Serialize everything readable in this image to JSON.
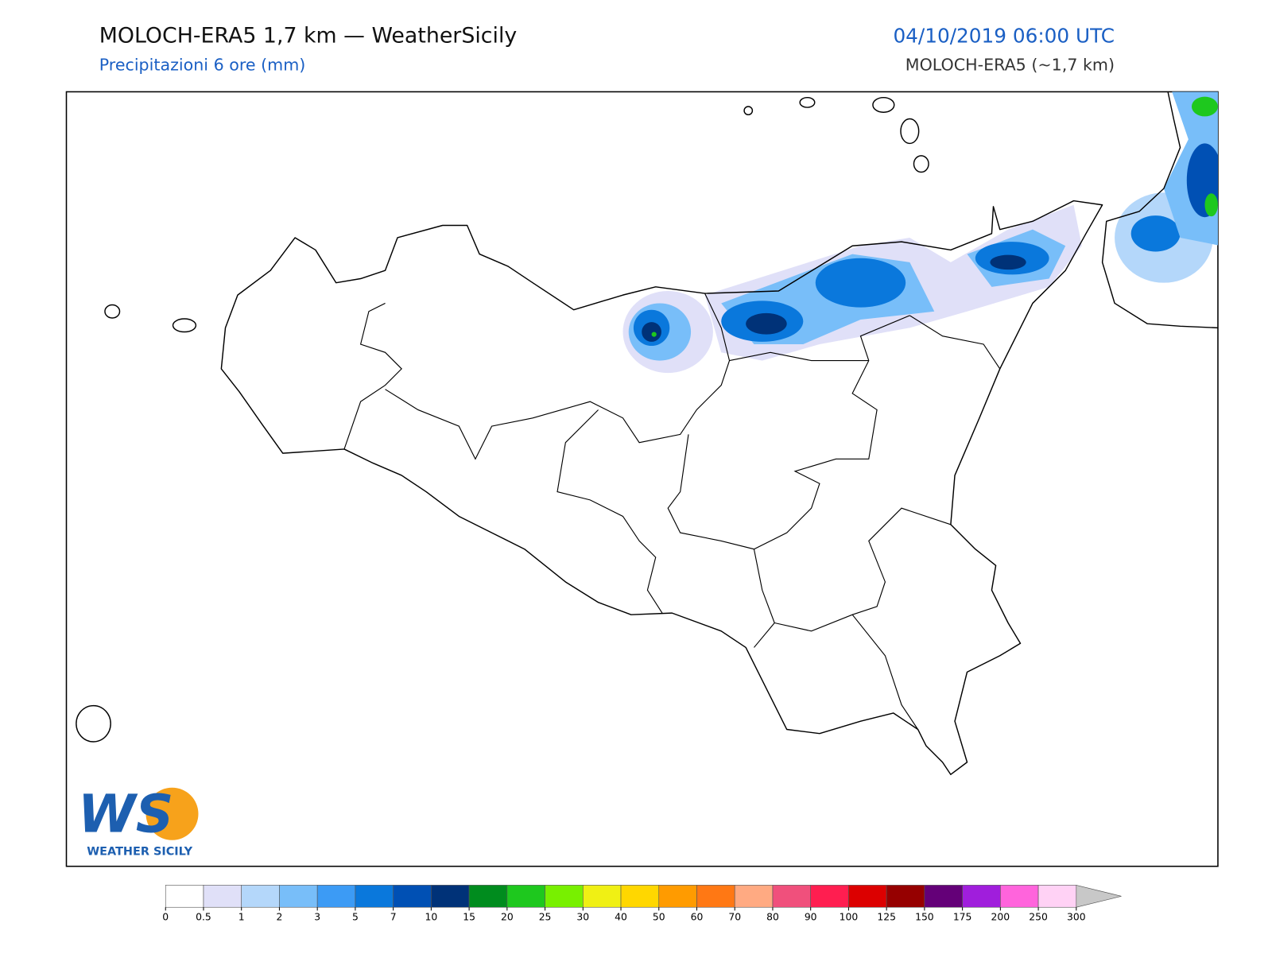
{
  "header": {
    "title": "MOLOCH-ERA5 1,7 km — WeatherSicily",
    "subtitle": "Precipitazioni 6 ore (mm)",
    "datetime": "04/10/2019 06:00 UTC",
    "model": "MOLOCH-ERA5 (~1,7 km)"
  },
  "logo": {
    "mark": "WS",
    "text": "WEATHER SICILY"
  },
  "colorbar": {
    "ticks": [
      0,
      0.5,
      1,
      2,
      3,
      5,
      7,
      10,
      15,
      20,
      25,
      30,
      40,
      50,
      60,
      70,
      80,
      90,
      100,
      125,
      150,
      175,
      200,
      250,
      300
    ],
    "colors": [
      "#ffffff",
      "#e0e0f8",
      "#b4d7fa",
      "#78bef9",
      "#3c9bf5",
      "#0a78dc",
      "#0050b4",
      "#003278",
      "#008c1e",
      "#1ec81e",
      "#78f000",
      "#f0f014",
      "#ffd700",
      "#ff9b00",
      "#ff7814",
      "#ffaa82",
      "#f0507c",
      "#ff1e50",
      "#dc0000",
      "#960000",
      "#640078",
      "#a01edc",
      "#ff64dc",
      "#ffd2f5"
    ],
    "extend_color": "#c8c8c8"
  }
}
